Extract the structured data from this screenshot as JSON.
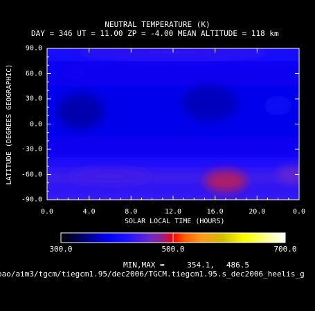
{
  "chart_data": {
    "type": "heatmap",
    "title": "NEUTRAL TEMPERATURE (K)",
    "subtitle": "DAY = 346   UT = 11.00   ZP =   -4.00   MEAN ALTITUDE = 118 km",
    "xlabel": "SOLAR LOCAL TIME (HOURS)",
    "ylabel": "LATITUDE (DEGREES GEOGRAPHIC)",
    "xlim": [
      0,
      24
    ],
    "ylim": [
      -90,
      90
    ],
    "x_ticks": [
      "0.0",
      "4.0",
      "8.0",
      "12.0",
      "16.0",
      "20.0",
      "0.0"
    ],
    "y_ticks": [
      "90.0",
      "60.0",
      "30.0",
      "0.0",
      "-30.0",
      "-60.0",
      "-90.0"
    ],
    "colorbar": {
      "min": 300,
      "max": 700,
      "tick_labels": [
        "300.0",
        "500.0",
        "700.0"
      ],
      "tick_values": [
        300,
        500,
        700
      ]
    },
    "minmax_label": "MIN,MAX =",
    "min_value": "354.1,",
    "max_value": "486.5",
    "features": [
      {
        "x": 3.2,
        "y": 15,
        "value": 360
      },
      {
        "x": 15.5,
        "y": 25,
        "value": 365
      },
      {
        "x": 2.5,
        "y": 62,
        "value": 392
      },
      {
        "x": 22,
        "y": 22,
        "value": 400
      },
      {
        "x": 17,
        "y": -68,
        "value": 486
      },
      {
        "x": 23.5,
        "y": -60,
        "value": 455
      },
      {
        "x": 6,
        "y": -62,
        "value": 438
      },
      {
        "x": 12,
        "y": 85,
        "value": 430
      }
    ]
  },
  "filepath": "pao/aim3/tgcm/tiegcm1.95/dec2006/TGCM.tiegcm1.95.s_dec2006_heelis_g"
}
